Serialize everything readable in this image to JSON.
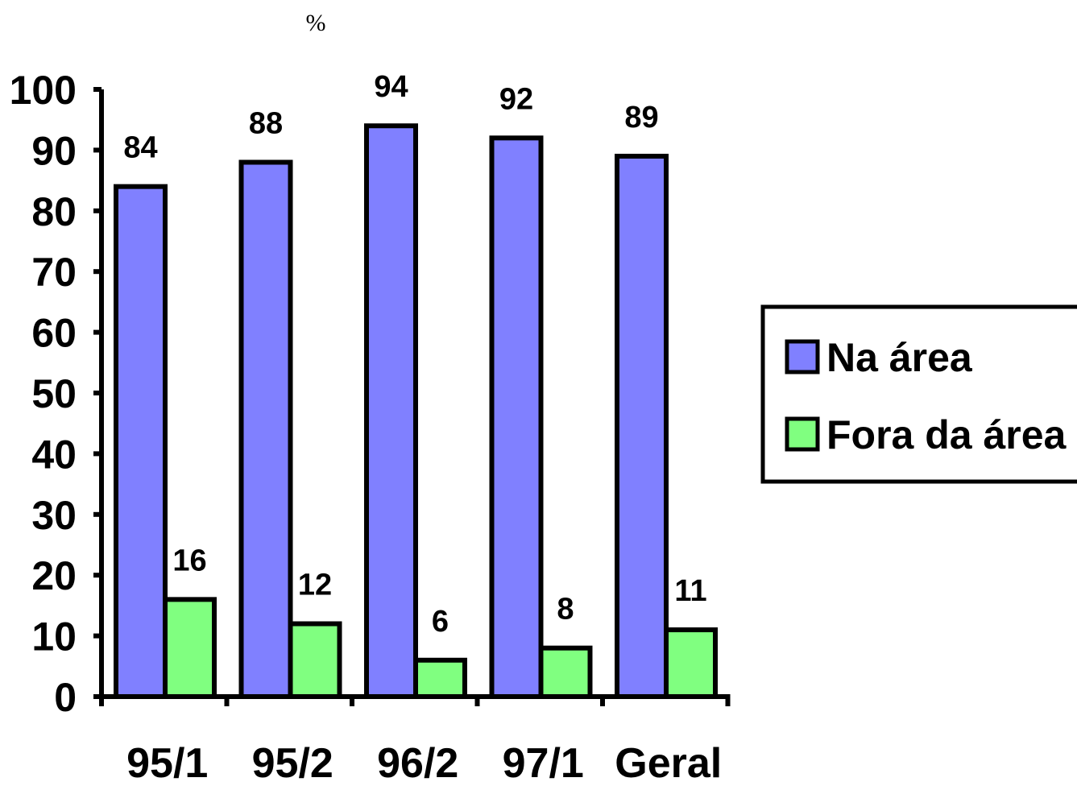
{
  "chart_data": {
    "type": "bar",
    "unit_label": "%",
    "categories": [
      "95/1",
      "95/2",
      "96/2",
      "97/1",
      "Geral"
    ],
    "series": [
      {
        "name": "Na área",
        "values": [
          84,
          88,
          94,
          92,
          89
        ],
        "color": "#8080ff"
      },
      {
        "name": "Fora da área",
        "values": [
          16,
          12,
          6,
          8,
          11
        ],
        "color": "#80ff80"
      }
    ],
    "ylim": [
      0,
      100
    ],
    "yticks": [
      "0",
      "10",
      "20",
      "30",
      "40",
      "50",
      "60",
      "70",
      "80",
      "90",
      "100"
    ],
    "grid": false,
    "data_labels": true,
    "legend_position": "right"
  }
}
